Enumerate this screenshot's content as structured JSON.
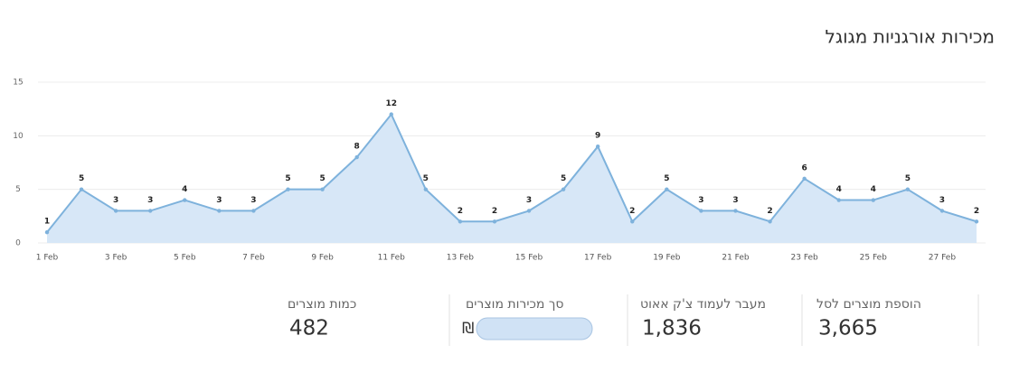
{
  "chart_data": {
    "type": "area",
    "title": "מכירות אורגניות מגוגל",
    "categories": [
      "1 Feb",
      null,
      "3 Feb",
      null,
      "5 Feb",
      null,
      "7 Feb",
      null,
      "9 Feb",
      null,
      "11 Feb",
      null,
      "13 Feb",
      null,
      "15 Feb",
      null,
      "17 Feb",
      null,
      "19 Feb",
      null,
      "21 Feb",
      null,
      "23 Feb",
      null,
      "25 Feb",
      null,
      "27 Feb",
      null
    ],
    "values": [
      1,
      5,
      3,
      3,
      4,
      3,
      3,
      5,
      5,
      8,
      12,
      5,
      2,
      2,
      3,
      5,
      9,
      2,
      5,
      3,
      3,
      2,
      6,
      4,
      4,
      5,
      3,
      2
    ],
    "color": "#7eb2dc",
    "fill": "#d7e7f7",
    "ylim": [
      0,
      15
    ],
    "yticks": [
      0,
      5,
      10,
      15
    ],
    "grid": true
  },
  "stats": [
    {
      "label": "הוספת מוצרים לסל",
      "value": "3,665"
    },
    {
      "label": "מעבר לעמוד צ'ק אאוט",
      "value": "1,836"
    },
    {
      "label": "סך מכירות מוצרים",
      "value": "₪"
    },
    {
      "label": "כמות מוצרים",
      "value": "482"
    }
  ]
}
